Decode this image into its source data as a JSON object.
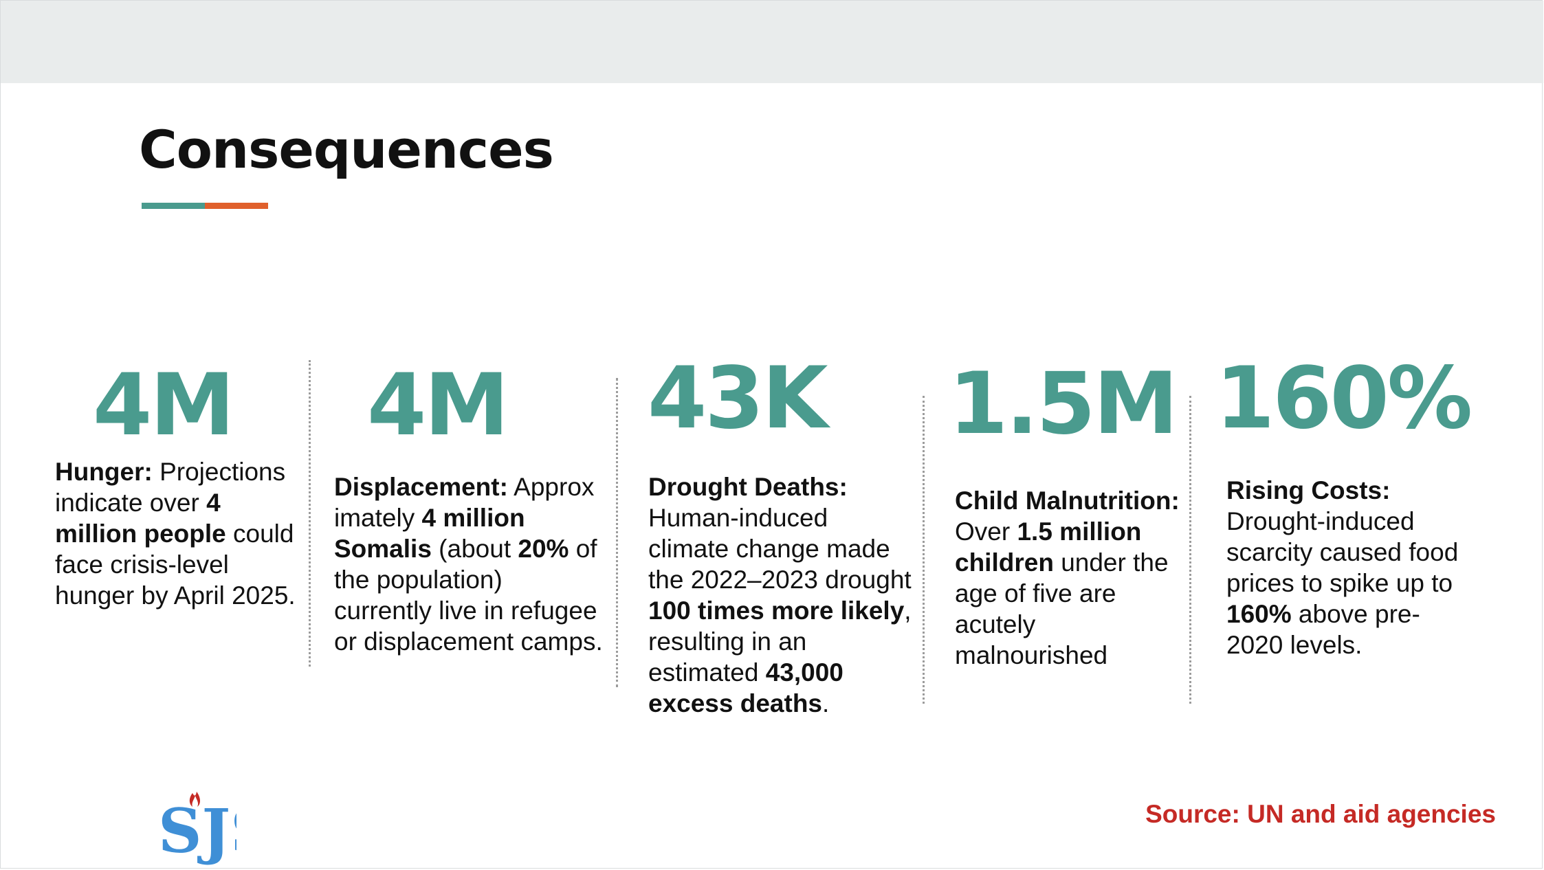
{
  "title": "Consequences",
  "colors": {
    "teal": "#4a9b8e",
    "orange": "#e0602c",
    "source_red": "#c52a25",
    "logo_blue": "#3f8fd6"
  },
  "stats": [
    {
      "number": "4M",
      "label": "Hunger:",
      "segments": [
        {
          "text": " Projections indicate over ",
          "bold": false
        },
        {
          "text": "4 million people",
          "bold": true
        },
        {
          "text": " could face crisis-level hunger by April 2025.",
          "bold": false
        }
      ]
    },
    {
      "number": "4M",
      "label": "Displacement:",
      "segments": [
        {
          "text": " Approx imately ",
          "bold": false
        },
        {
          "text": "4 million Somalis",
          "bold": true
        },
        {
          "text": " (about ",
          "bold": false
        },
        {
          "text": "20%",
          "bold": true
        },
        {
          "text": " of the population) currently live in refugee or displacement camps.",
          "bold": false
        }
      ]
    },
    {
      "number": "43K",
      "label": "Drought Deaths:",
      "segments": [
        {
          "text": " Human-induced climate change made the 2022–2023 drought ",
          "bold": false
        },
        {
          "text": "100 times more likely",
          "bold": true
        },
        {
          "text": ", resulting in an estimated ",
          "bold": false
        },
        {
          "text": "43,000 excess deaths",
          "bold": true
        },
        {
          "text": ".",
          "bold": false
        }
      ]
    },
    {
      "number": "1.5M",
      "label": "Child Malnutrition:",
      "segments": [
        {
          "text": " Over ",
          "bold": false
        },
        {
          "text": "1.5 million children",
          "bold": true
        },
        {
          "text": " under the age of five are acutely malnourished",
          "bold": false
        }
      ]
    },
    {
      "number": "160%",
      "label": "Rising Costs:",
      "segments": [
        {
          "text": " Drought-induced scarcity caused food prices to spike up to ",
          "bold": false
        },
        {
          "text": "160%",
          "bold": true
        },
        {
          "text": " above pre-2020 levels.",
          "bold": false
        }
      ]
    }
  ],
  "logo": {
    "text": "SJS",
    "icon": "flame-logo-icon"
  },
  "source": "Source: UN and aid agencies"
}
